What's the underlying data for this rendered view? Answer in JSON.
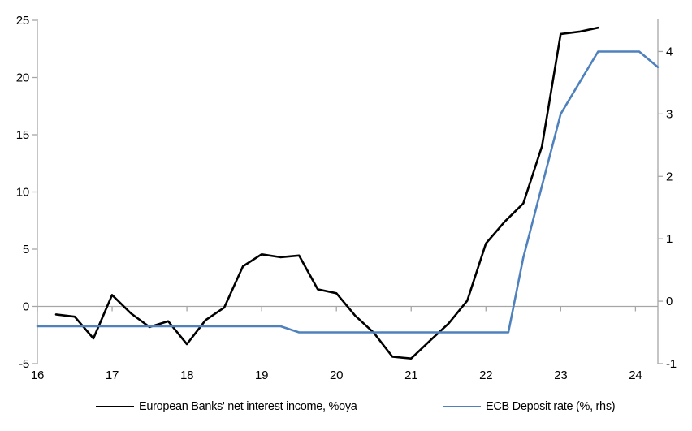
{
  "chart_data": {
    "type": "line",
    "title": "",
    "xlabel": "",
    "ylabel_left": "",
    "ylabel_right": "",
    "grid": "zero-line-only",
    "legend_position": "bottom",
    "x_axis": {
      "ticks": [
        16,
        17,
        18,
        19,
        20,
        21,
        22,
        23,
        24
      ],
      "labels": [
        "16",
        "17",
        "18",
        "19",
        "20",
        "21",
        "22",
        "23",
        "24"
      ],
      "range": [
        16,
        24.3
      ]
    },
    "y_axis_left": {
      "ticks": [
        -5,
        0,
        5,
        10,
        15,
        20,
        25
      ],
      "labels": [
        "-5",
        "0",
        "5",
        "10",
        "15",
        "20",
        "25"
      ],
      "range": [
        -5,
        25
      ]
    },
    "y_axis_right": {
      "ticks": [
        -1,
        0,
        1,
        2,
        3,
        4
      ],
      "labels": [
        "-1",
        "0",
        "1",
        "2",
        "3",
        "4"
      ],
      "range": [
        -1,
        4.5
      ]
    },
    "series": [
      {
        "name": "European Banks' net interest income, %oya",
        "color": "#000000",
        "axis": "left",
        "x": [
          16.25,
          16.5,
          16.75,
          17.0,
          17.25,
          17.5,
          17.75,
          18.0,
          18.25,
          18.5,
          18.75,
          19.0,
          19.25,
          19.5,
          19.75,
          20.0,
          20.25,
          20.5,
          20.75,
          21.0,
          21.25,
          21.5,
          21.75,
          22.0,
          22.25,
          22.5,
          22.75,
          23.0,
          23.25,
          23.5
        ],
        "values": [
          -0.7,
          -0.9,
          -2.8,
          1.0,
          -0.6,
          -1.8,
          -1.3,
          -3.3,
          -1.2,
          -0.1,
          3.5,
          4.55,
          4.3,
          4.45,
          1.5,
          1.15,
          -0.8,
          -2.3,
          -4.4,
          -4.55,
          -3.0,
          -1.5,
          0.5,
          5.5,
          7.4,
          9.0,
          14.0,
          23.8,
          24.0,
          24.35
        ]
      },
      {
        "name": "ECB Deposit rate (%, rhs)",
        "color": "#4f81bd",
        "axis": "right",
        "x": [
          16.0,
          19.25,
          19.5,
          22.3,
          22.5,
          22.75,
          23.0,
          23.25,
          23.5,
          24.05,
          24.3
        ],
        "values": [
          -0.4,
          -0.4,
          -0.5,
          -0.5,
          0.7,
          1.85,
          3.0,
          3.5,
          4.0,
          4.0,
          3.75
        ]
      }
    ]
  },
  "colors": {
    "nii_line": "#000000",
    "deposit_rate_line": "#4f81bd",
    "axis": "#a6a6a6",
    "text": "#000000",
    "background": "#ffffff"
  }
}
